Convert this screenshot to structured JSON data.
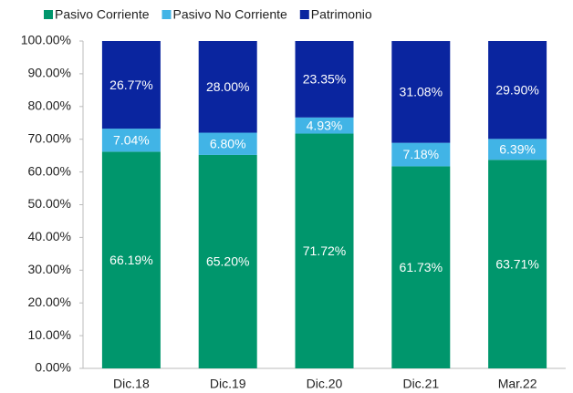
{
  "chart_data": {
    "type": "stacked_bar",
    "categories": [
      "Dic.18",
      "Dic.19",
      "Dic.20",
      "Dic.21",
      "Mar.22"
    ],
    "series": [
      {
        "name": "Pasivo Corriente",
        "color": "#00966c",
        "values": [
          66.19,
          65.2,
          71.72,
          61.73,
          63.71
        ],
        "value_labels": [
          "66.19%",
          "65.20%",
          "71.72%",
          "61.73%",
          "63.71%"
        ]
      },
      {
        "name": "Pasivo No Corriente",
        "color": "#41b4e6",
        "values": [
          7.04,
          6.8,
          4.93,
          7.18,
          6.39
        ],
        "value_labels": [
          "7.04%",
          "6.80%",
          "4.93%",
          "7.18%",
          "6.39%"
        ]
      },
      {
        "name": "Patrimonio",
        "color": "#0a259f",
        "values": [
          26.77,
          28.0,
          23.35,
          31.08,
          29.9
        ],
        "value_labels": [
          "26.77%",
          "28.00%",
          "23.35%",
          "31.08%",
          "29.90%"
        ]
      }
    ],
    "ylim": [
      0,
      100
    ],
    "yticks": [
      {
        "value": 0,
        "label": "0.00%"
      },
      {
        "value": 10,
        "label": "10.00%"
      },
      {
        "value": 20,
        "label": "20.00%"
      },
      {
        "value": 30,
        "label": "30.00%"
      },
      {
        "value": 40,
        "label": "40.00%"
      },
      {
        "value": 50,
        "label": "50.00%"
      },
      {
        "value": 60,
        "label": "60.00%"
      },
      {
        "value": 70,
        "label": "70.00%"
      },
      {
        "value": 80,
        "label": "80.00%"
      },
      {
        "value": 90,
        "label": "90.00%"
      },
      {
        "value": 100,
        "label": "100.00%"
      }
    ],
    "legend": "top"
  }
}
